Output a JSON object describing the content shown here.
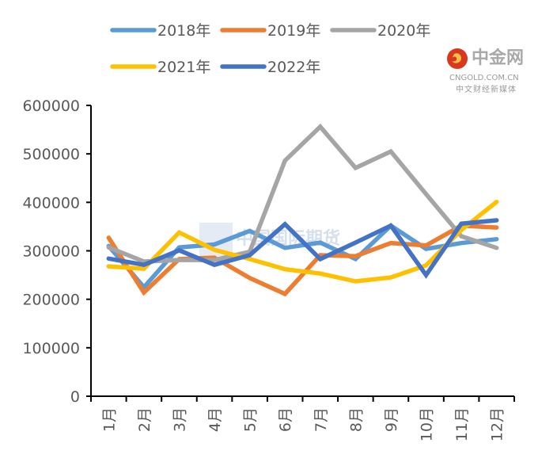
{
  "chart_data": {
    "type": "line",
    "title": "",
    "xlabel": "",
    "ylabel": "",
    "categories": [
      "1月",
      "2月",
      "3月",
      "4月",
      "5月",
      "6月",
      "7月",
      "8月",
      "9月",
      "10月",
      "11月",
      "12月"
    ],
    "ylim": [
      0,
      600000
    ],
    "yticks": [
      "0",
      "100000",
      "200000",
      "300000",
      "400000",
      "500000",
      "600000"
    ],
    "ytick_values": [
      0,
      100000,
      200000,
      300000,
      400000,
      500000,
      600000
    ],
    "grid": false,
    "legend_position": "top",
    "series": [
      {
        "name": "2018年",
        "color": "#5b9bd5",
        "values": [
          310000,
          225000,
          307000,
          313000,
          341000,
          306000,
          317000,
          283000,
          352000,
          304000,
          316000,
          324000
        ]
      },
      {
        "name": "2019年",
        "color": "#ed7d31",
        "values": [
          327000,
          214000,
          283000,
          286000,
          244000,
          211000,
          291000,
          289000,
          316000,
          311000,
          352000,
          348000
        ]
      },
      {
        "name": "2020年",
        "color": "#a5a5a5",
        "values": [
          307000,
          278000,
          281000,
          281000,
          298000,
          486000,
          556000,
          471000,
          505000,
          417000,
          330000,
          306000
        ]
      },
      {
        "name": "2021年",
        "color": "#ffc000",
        "values": [
          268000,
          263000,
          338000,
          302000,
          283000,
          262000,
          253000,
          237000,
          245000,
          270000,
          343000,
          401000
        ]
      },
      {
        "name": "2022年",
        "color": "#4472c4",
        "values": [
          284000,
          271000,
          301000,
          271000,
          291000,
          355000,
          283000,
          317000,
          352000,
          250000,
          356000,
          363000
        ]
      }
    ]
  },
  "watermark": {
    "text": "中国国际期货"
  },
  "logo": {
    "name": "中金网",
    "domain": "CNGOLD.COM.CN",
    "tagline": "中文财经新媒体",
    "accent": "#d9381e"
  }
}
